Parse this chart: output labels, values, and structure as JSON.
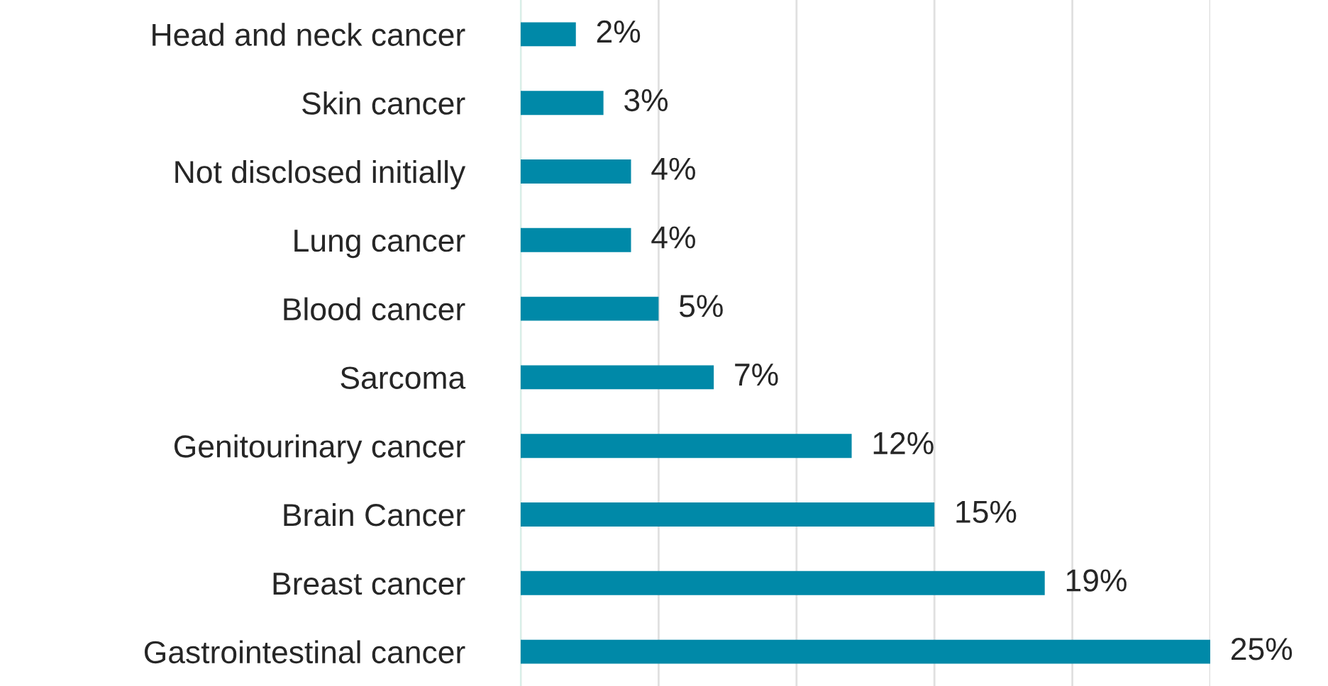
{
  "chart_data": {
    "type": "bar",
    "orientation": "horizontal",
    "categories": [
      "Head and neck cancer",
      "Skin cancer",
      "Not disclosed initially",
      "Lung cancer",
      "Blood cancer",
      "Sarcoma",
      "Genitourinary cancer",
      "Brain Cancer",
      "Breast cancer",
      "Gastrointestinal cancer"
    ],
    "values": [
      2,
      3,
      4,
      4,
      5,
      7,
      12,
      15,
      19,
      25
    ],
    "value_labels": [
      "2%",
      "3%",
      "4%",
      "4%",
      "5%",
      "7%",
      "12%",
      "15%",
      "19%",
      "25%"
    ],
    "color": "#0089a8",
    "xticks": [
      {
        "value": 0,
        "label": null
      },
      {
        "value": 5,
        "label": null
      },
      {
        "value": 10,
        "label": null
      },
      {
        "value": 15,
        "label": null
      },
      {
        "value": 20,
        "label": null
      },
      {
        "value": 25,
        "label": null
      }
    ],
    "grid": "x"
  }
}
